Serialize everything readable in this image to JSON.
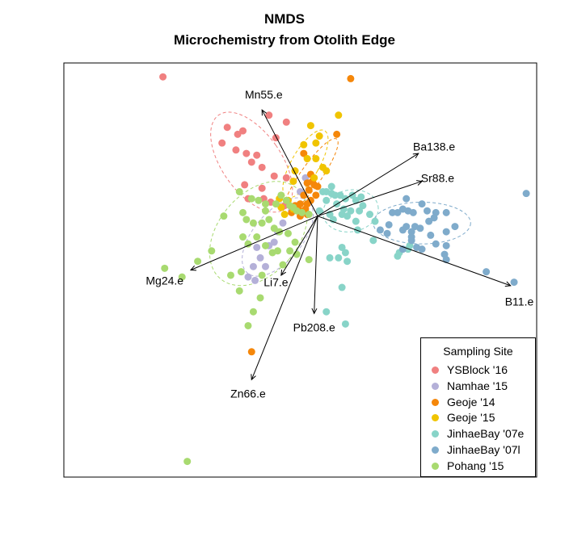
{
  "chart_data": {
    "type": "scatter",
    "title": "NMDS",
    "subtitle": "Microchemistry from Otolith Edge",
    "xlabel": "",
    "ylabel": "",
    "xlim": [
      -1.46,
      1.26
    ],
    "ylim": [
      -1.5,
      0.88
    ],
    "axes_visible": false,
    "legend": {
      "title": "Sampling Site",
      "position": "bottom-right"
    },
    "series": [
      {
        "name": "YSBlock '16",
        "color": "#F08080",
        "points": [
          [
            -0.89,
            0.8
          ],
          [
            -0.28,
            0.58
          ],
          [
            -0.18,
            0.54
          ],
          [
            -0.52,
            0.51
          ],
          [
            -0.43,
            0.49
          ],
          [
            -0.46,
            0.47
          ],
          [
            -0.24,
            0.45
          ],
          [
            -0.55,
            0.42
          ],
          [
            -0.47,
            0.38
          ],
          [
            -0.41,
            0.36
          ],
          [
            -0.35,
            0.35
          ],
          [
            -0.38,
            0.31
          ],
          [
            -0.32,
            0.28
          ],
          [
            -0.25,
            0.23
          ],
          [
            -0.18,
            0.22
          ],
          [
            -0.42,
            0.18
          ],
          [
            -0.32,
            0.16
          ],
          [
            -0.4,
            0.1
          ],
          [
            -0.31,
            0.1
          ],
          [
            -0.27,
            0.08
          ],
          [
            -0.19,
            0.06
          ]
        ]
      },
      {
        "name": "Namhae '15",
        "color": "#B4B0D8",
        "points": [
          [
            -0.07,
            0.22
          ],
          [
            -0.1,
            0.14
          ],
          [
            -0.12,
            0.06
          ],
          [
            -0.15,
            0.03
          ],
          [
            -0.2,
            -0.04
          ],
          [
            -0.23,
            -0.09
          ],
          [
            -0.25,
            -0.15
          ],
          [
            -0.28,
            -0.17
          ],
          [
            -0.35,
            -0.18
          ],
          [
            -0.33,
            -0.24
          ],
          [
            -0.37,
            -0.29
          ],
          [
            -0.3,
            -0.29
          ],
          [
            -0.4,
            -0.35
          ],
          [
            -0.36,
            -0.37
          ]
        ]
      },
      {
        "name": "Geoje '14",
        "color": "#F5870A",
        "points": [
          [
            0.19,
            0.79
          ],
          [
            0.11,
            0.47
          ],
          [
            -0.08,
            0.36
          ],
          [
            -0.04,
            0.24
          ],
          [
            -0.03,
            0.2
          ],
          [
            -0.06,
            0.19
          ],
          [
            -0.02,
            0.18
          ],
          [
            0.0,
            0.17
          ],
          [
            -0.05,
            0.15
          ],
          [
            -0.08,
            0.12
          ],
          [
            -0.01,
            0.12
          ],
          [
            -0.04,
            0.09
          ],
          [
            -0.1,
            0.07
          ],
          [
            -0.06,
            0.07
          ],
          [
            -0.13,
            0.06
          ],
          [
            -0.15,
            0.02
          ],
          [
            -0.11,
            0.04
          ],
          [
            -0.07,
            0.04
          ],
          [
            -0.06,
            0.01
          ],
          [
            -0.1,
            0.0
          ],
          [
            -0.38,
            -0.78
          ]
        ]
      },
      {
        "name": "Geoje '15",
        "color": "#F0C400",
        "points": [
          [
            0.12,
            0.58
          ],
          [
            -0.04,
            0.52
          ],
          [
            0.01,
            0.46
          ],
          [
            -0.01,
            0.42
          ],
          [
            -0.08,
            0.41
          ],
          [
            -0.06,
            0.33
          ],
          [
            -0.01,
            0.33
          ],
          [
            0.03,
            0.28
          ],
          [
            -0.13,
            0.26
          ],
          [
            0.05,
            0.26
          ],
          [
            -0.14,
            0.2
          ],
          [
            -0.02,
            0.22
          ],
          [
            -0.22,
            0.1
          ],
          [
            -0.17,
            0.09
          ],
          [
            -0.21,
            0.05
          ],
          [
            -0.14,
            0.04
          ],
          [
            -0.19,
            0.01
          ]
        ]
      },
      {
        "name": "JinhaeBay '07e",
        "color": "#88D4C8",
        "points": [
          [
            0.08,
            0.17
          ],
          [
            0.03,
            0.14
          ],
          [
            0.05,
            0.14
          ],
          [
            0.08,
            0.13
          ],
          [
            0.1,
            0.12
          ],
          [
            0.13,
            0.12
          ],
          [
            0.2,
            0.12
          ],
          [
            0.25,
            0.11
          ],
          [
            0.16,
            0.1
          ],
          [
            0.22,
            0.09
          ],
          [
            0.05,
            0.09
          ],
          [
            0.11,
            0.07
          ],
          [
            0.26,
            0.06
          ],
          [
            0.15,
            0.04
          ],
          [
            0.19,
            0.03
          ],
          [
            0.24,
            0.03
          ],
          [
            0.01,
            0.03
          ],
          [
            0.07,
            0.01
          ],
          [
            0.14,
            0.01
          ],
          [
            0.3,
            0.01
          ],
          [
            0.17,
            0.0
          ],
          [
            0.09,
            -0.02
          ],
          [
            0.22,
            -0.03
          ],
          [
            0.33,
            -0.03
          ],
          [
            0.23,
            -0.08
          ],
          [
            0.32,
            -0.14
          ],
          [
            0.14,
            -0.18
          ],
          [
            0.16,
            -0.21
          ],
          [
            0.12,
            -0.24
          ],
          [
            0.17,
            -0.26
          ],
          [
            0.47,
            -0.21
          ],
          [
            0.53,
            -0.17
          ],
          [
            0.07,
            -0.24
          ],
          [
            0.14,
            -0.41
          ],
          [
            0.05,
            -0.55
          ],
          [
            0.16,
            -0.62
          ],
          [
            0.52,
            -0.19
          ],
          [
            0.46,
            -0.23
          ]
        ]
      },
      {
        "name": "JinhaeBay '07l",
        "color": "#7FABCB",
        "points": [
          [
            1.2,
            0.13
          ],
          [
            0.51,
            0.1
          ],
          [
            0.6,
            0.07
          ],
          [
            0.49,
            0.04
          ],
          [
            0.52,
            0.03
          ],
          [
            0.63,
            0.03
          ],
          [
            0.46,
            0.02
          ],
          [
            0.43,
            0.02
          ],
          [
            0.55,
            0.02
          ],
          [
            0.74,
            0.02
          ],
          [
            0.68,
            0.02
          ],
          [
            0.67,
            -0.01
          ],
          [
            0.64,
            -0.03
          ],
          [
            0.41,
            -0.05
          ],
          [
            0.79,
            -0.06
          ],
          [
            0.51,
            -0.06
          ],
          [
            0.56,
            -0.06
          ],
          [
            0.59,
            -0.07
          ],
          [
            0.49,
            -0.08
          ],
          [
            0.54,
            -0.09
          ],
          [
            0.74,
            -0.09
          ],
          [
            0.36,
            -0.08
          ],
          [
            0.4,
            -0.1
          ],
          [
            0.65,
            -0.11
          ],
          [
            0.54,
            -0.12
          ],
          [
            0.54,
            -0.14
          ],
          [
            0.68,
            -0.16
          ],
          [
            0.74,
            -0.17
          ],
          [
            0.6,
            -0.19
          ],
          [
            0.73,
            -0.22
          ],
          [
            0.57,
            -0.18
          ],
          [
            0.49,
            -0.19
          ],
          [
            0.74,
            -0.25
          ],
          [
            0.97,
            -0.32
          ],
          [
            1.13,
            -0.38
          ]
        ]
      },
      {
        "name": "Pohang '15",
        "color": "#A8DA70",
        "points": [
          [
            -0.45,
            0.14
          ],
          [
            -0.38,
            0.1
          ],
          [
            -0.34,
            0.09
          ],
          [
            -0.3,
            0.07
          ],
          [
            -0.3,
            0.03
          ],
          [
            -0.24,
            0.07
          ],
          [
            -0.21,
            0.12
          ],
          [
            -0.18,
            0.09
          ],
          [
            -0.16,
            0.06
          ],
          [
            -0.14,
            0.05
          ],
          [
            -0.12,
            0.03
          ],
          [
            -0.09,
            0.02
          ],
          [
            -0.05,
            0.01
          ],
          [
            -0.54,
            0.0
          ],
          [
            -0.43,
            0.02
          ],
          [
            -0.41,
            -0.02
          ],
          [
            -0.37,
            -0.04
          ],
          [
            -0.32,
            -0.04
          ],
          [
            -0.28,
            -0.02
          ],
          [
            -0.25,
            -0.07
          ],
          [
            -0.22,
            -0.09
          ],
          [
            -0.43,
            -0.12
          ],
          [
            -0.35,
            -0.12
          ],
          [
            -0.4,
            -0.16
          ],
          [
            -0.3,
            -0.17
          ],
          [
            -0.26,
            -0.21
          ],
          [
            -0.23,
            -0.2
          ],
          [
            -0.16,
            -0.2
          ],
          [
            -0.12,
            -0.22
          ],
          [
            -0.05,
            -0.25
          ],
          [
            -0.61,
            -0.2
          ],
          [
            -0.69,
            -0.26
          ],
          [
            -0.88,
            -0.3
          ],
          [
            -0.78,
            -0.35
          ],
          [
            -0.44,
            -0.32
          ],
          [
            -0.5,
            -0.34
          ],
          [
            -0.32,
            -0.34
          ],
          [
            -0.45,
            -0.43
          ],
          [
            -0.33,
            -0.47
          ],
          [
            -0.37,
            -0.55
          ],
          [
            -0.4,
            -0.63
          ],
          [
            -0.75,
            -1.41
          ],
          [
            -0.17,
            -0.1
          ],
          [
            -0.13,
            -0.15
          ],
          [
            -0.2,
            -0.28
          ]
        ]
      }
    ],
    "ellipses": [
      {
        "series": "YSBlock '16",
        "center": [
          -0.38,
          0.31
        ],
        "rx": 0.17,
        "ry": 0.33,
        "angle": -35
      },
      {
        "series": "Geoje '14",
        "center": [
          -0.04,
          0.23
        ],
        "rx": 0.06,
        "ry": 0.26,
        "angle": 35
      },
      {
        "series": "Geoje '15",
        "center": [
          -0.07,
          0.3
        ],
        "rx": 0.08,
        "ry": 0.22,
        "angle": 30
      },
      {
        "series": "Namhae '15",
        "center": [
          -0.23,
          -0.12
        ],
        "rx": 0.14,
        "ry": 0.27,
        "angle": 40
      },
      {
        "series": "Pohang '15",
        "center": [
          -0.34,
          -0.1
        ],
        "rx": 0.23,
        "ry": 0.34,
        "angle": 40
      },
      {
        "series": "JinhaeBay '07e",
        "center": [
          0.19,
          0.03
        ],
        "rx": 0.16,
        "ry": 0.12,
        "angle": -10
      },
      {
        "series": "JinhaeBay '07l",
        "center": [
          0.6,
          -0.04
        ],
        "rx": 0.28,
        "ry": 0.12,
        "angle": 0
      }
    ],
    "vectors": [
      {
        "label": "Mn55.e",
        "end": [
          -0.32,
          0.61
        ]
      },
      {
        "label": "Ba138.e",
        "end": [
          0.58,
          0.36
        ]
      },
      {
        "label": "Sr88.e",
        "end": [
          0.6,
          0.2
        ]
      },
      {
        "label": "B11.e",
        "end": [
          1.11,
          -0.4
        ]
      },
      {
        "label": "Mg24.e",
        "end": [
          -0.73,
          -0.31
        ]
      },
      {
        "label": "Li7.e",
        "end": [
          -0.21,
          -0.34
        ]
      },
      {
        "label": "Pb208.e",
        "end": [
          -0.02,
          -0.56
        ]
      },
      {
        "label": "Zn66.e",
        "end": [
          -0.38,
          -0.94
        ]
      }
    ],
    "vector_label_positions": {
      "Mn55.e": [
        -0.31,
        0.7
      ],
      "Ba138.e": [
        0.67,
        0.4
      ],
      "Sr88.e": [
        0.69,
        0.22
      ],
      "B11.e": [
        1.16,
        -0.49
      ],
      "Mg24.e": [
        -0.88,
        -0.37
      ],
      "Li7.e": [
        -0.24,
        -0.38
      ],
      "Pb208.e": [
        -0.02,
        -0.64
      ],
      "Zn66.e": [
        -0.4,
        -1.02
      ]
    }
  }
}
